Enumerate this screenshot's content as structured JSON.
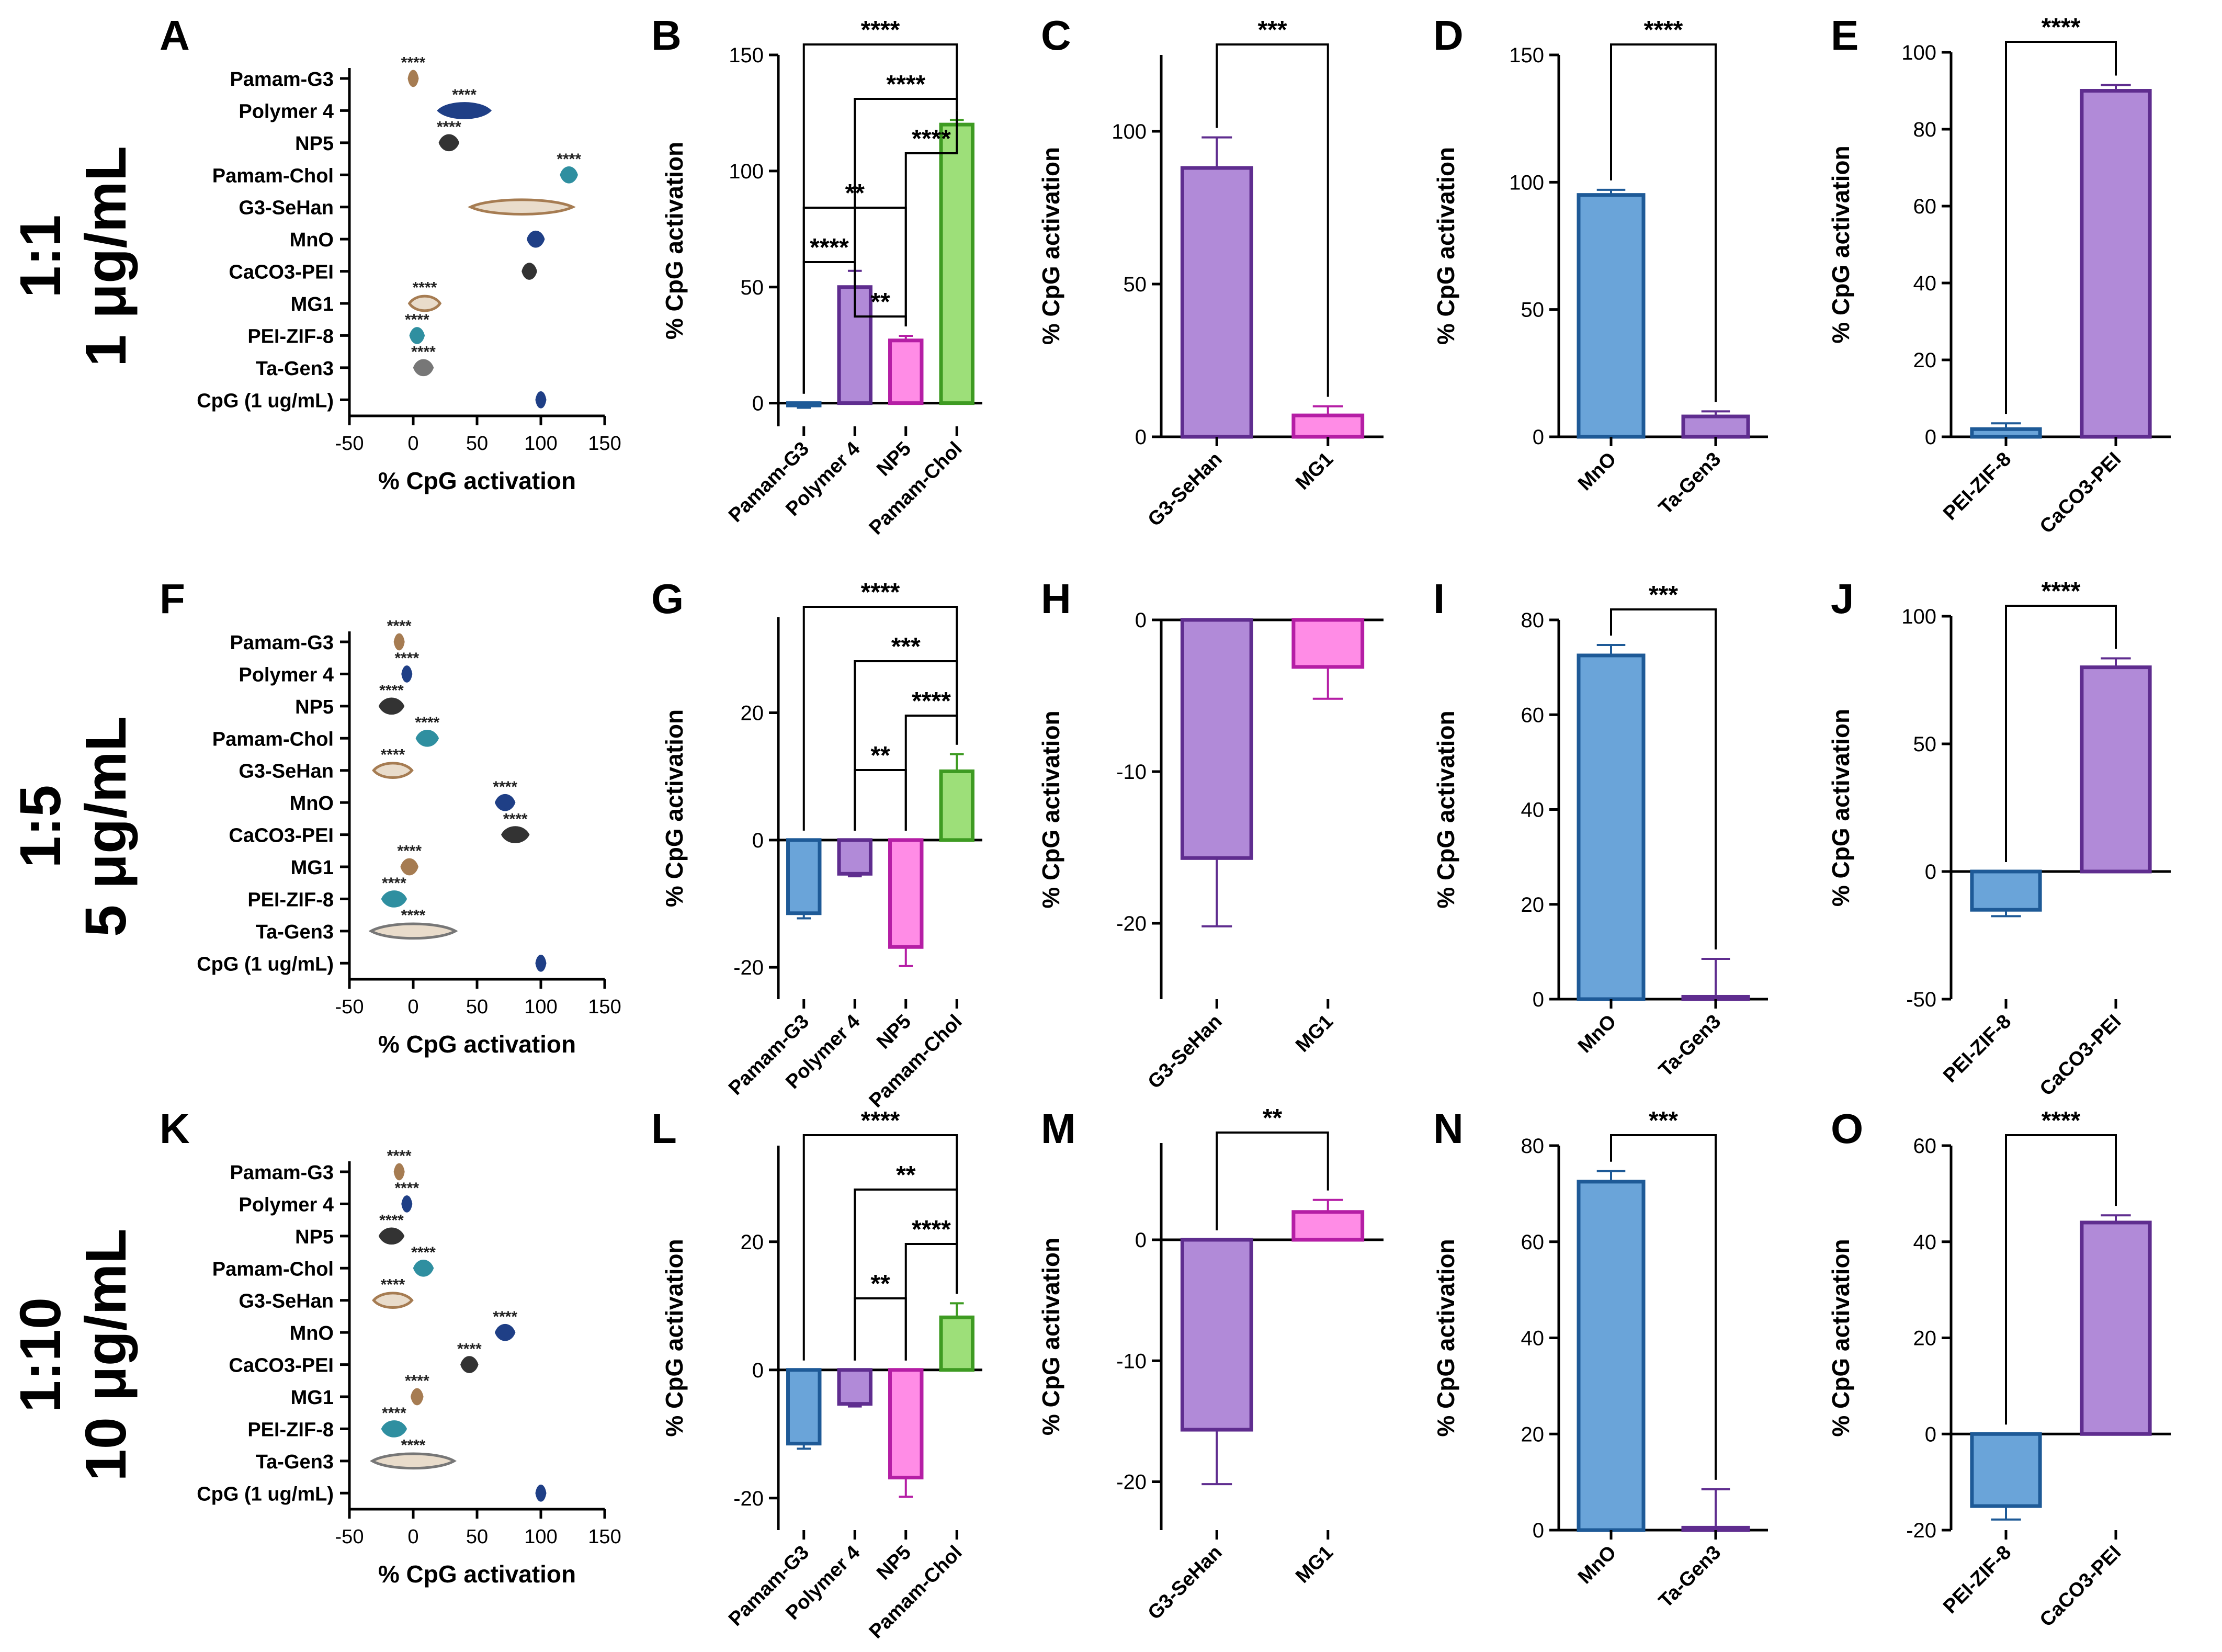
{
  "row_labels": [
    {
      "ratio": "1:1",
      "conc": "1 μg/mL"
    },
    {
      "ratio": "1:5",
      "conc": "5 μg/mL"
    },
    {
      "ratio": "1:10",
      "conc": "10 μg/mL"
    }
  ],
  "colors": {
    "brown": "#a67c52",
    "navy": "#1f3f86",
    "dark": "#333333",
    "teal": "#2f8fa0",
    "gray": "#777777",
    "blue_fill": "#6aa4d9",
    "blue_edge": "#1e5a97",
    "purple_fill": "#b18ad8",
    "purple_edge": "#5f2d8f",
    "pink_fill": "#ff8ce6",
    "pink_edge": "#b51ea5",
    "green_fill": "#9ddf79",
    "green_edge": "#3e9b22"
  },
  "chart_data": [
    {
      "panel": "A",
      "type": "violin",
      "xlabel": "% CpG activation",
      "xlim": [
        -50,
        150
      ],
      "xticks": [
        -50,
        0,
        50,
        100,
        150
      ],
      "categories": [
        "Pamam-G3",
        "Polymer 4",
        "NP5",
        "Pamam-Chol",
        "G3-SeHan",
        "MnO",
        "CaCO3-PEI",
        "MG1",
        "PEI-ZIF-8",
        "Ta-Gen3",
        "CpG (1 ug/mL)"
      ],
      "values": [
        0,
        40,
        28,
        122,
        85,
        96,
        91,
        9,
        3,
        8,
        100
      ],
      "spread": [
        3,
        20,
        7,
        6,
        40,
        6,
        5,
        12,
        5,
        7,
        3
      ],
      "colors": [
        "brown",
        "navy",
        "dark",
        "teal",
        "brown",
        "navy",
        "dark",
        "brown",
        "teal",
        "gray",
        "navy"
      ],
      "significance": [
        "****",
        "****",
        "****",
        "****",
        "",
        "",
        "",
        "****",
        "****",
        "****",
        ""
      ]
    },
    {
      "panel": "B",
      "type": "bar",
      "ylabel": "% CpG activation",
      "ylim": [
        -10,
        150
      ],
      "yticks": [
        0,
        50,
        100,
        150
      ],
      "categories": [
        "Pamam-G3",
        "Polymer 4",
        "NP5",
        "Pamam-Chol"
      ],
      "values": [
        -1,
        50,
        27,
        120
      ],
      "errors": [
        1,
        7,
        2,
        2
      ],
      "colors": [
        "blue",
        "purple",
        "pink",
        "green"
      ],
      "brackets": [
        {
          "from": 0,
          "to": 3,
          "label": "****"
        },
        {
          "from": 1,
          "to": 3,
          "label": "****"
        },
        {
          "from": 2,
          "to": 3,
          "label": "****"
        },
        {
          "from": 0,
          "to": 2,
          "label": "**"
        },
        {
          "from": 0,
          "to": 1,
          "label": "****"
        },
        {
          "from": 1,
          "to": 2,
          "label": "**"
        }
      ]
    },
    {
      "panel": "C",
      "type": "bar",
      "ylabel": "% CpG activation",
      "ylim": [
        0,
        125
      ],
      "yticks": [
        0,
        50,
        100
      ],
      "categories": [
        "G3-SeHan",
        "MG1"
      ],
      "values": [
        88,
        7
      ],
      "errors": [
        10,
        3
      ],
      "colors": [
        "purple",
        "pink"
      ],
      "brackets": [
        {
          "from": 0,
          "to": 1,
          "label": "***"
        }
      ]
    },
    {
      "panel": "D",
      "type": "bar",
      "ylabel": "% CpG activation",
      "ylim": [
        0,
        150
      ],
      "yticks": [
        0,
        50,
        100,
        150
      ],
      "categories": [
        "MnO",
        "Ta-Gen3"
      ],
      "values": [
        95,
        8
      ],
      "errors": [
        2,
        2
      ],
      "colors": [
        "blue",
        "purple"
      ],
      "brackets": [
        {
          "from": 0,
          "to": 1,
          "label": "****"
        }
      ]
    },
    {
      "panel": "E",
      "type": "bar",
      "ylabel": "% CpG activation",
      "ylim": [
        0,
        100
      ],
      "yticks": [
        0,
        20,
        40,
        60,
        80,
        100
      ],
      "categories": [
        "PEI-ZIF-8",
        "CaCO3-PEI"
      ],
      "values": [
        2,
        90
      ],
      "errors": [
        1.5,
        1.5
      ],
      "colors": [
        "blue",
        "purple"
      ],
      "brackets": [
        {
          "from": 0,
          "to": 1,
          "label": "****"
        }
      ]
    },
    {
      "panel": "F",
      "type": "violin",
      "xlabel": "% CpG activation",
      "xlim": [
        -50,
        150
      ],
      "xticks": [
        -50,
        0,
        50,
        100,
        150
      ],
      "categories": [
        "Pamam-G3",
        "Polymer 4",
        "NP5",
        "Pamam-Chol",
        "G3-SeHan",
        "MnO",
        "CaCO3-PEI",
        "MG1",
        "PEI-ZIF-8",
        "Ta-Gen3",
        "CpG (1 ug/mL)"
      ],
      "values": [
        -11,
        -5,
        -17,
        11,
        -16,
        72,
        80,
        -3,
        -15,
        0,
        100
      ],
      "spread": [
        3,
        2,
        9,
        8,
        15,
        7,
        10,
        6,
        9,
        33,
        3
      ],
      "colors": [
        "brown",
        "navy",
        "dark",
        "teal",
        "brown",
        "navy",
        "dark",
        "brown",
        "teal",
        "gray",
        "navy"
      ],
      "significance": [
        "****",
        "****",
        "****",
        "****",
        "****",
        "****",
        "****",
        "****",
        "****",
        "****",
        ""
      ]
    },
    {
      "panel": "G",
      "type": "bar",
      "ylabel": "% CpG activation",
      "ylim": [
        -25,
        35
      ],
      "yticks": [
        -20,
        0,
        20
      ],
      "categories": [
        "Pamam-G3",
        "Polymer 4",
        "NP5",
        "Pamam-Chol"
      ],
      "values": [
        -11.5,
        -5.3,
        -16.8,
        10.8
      ],
      "errors": [
        0.8,
        0.4,
        3.0,
        2.7
      ],
      "colors": [
        "blue",
        "purple",
        "pink",
        "green"
      ],
      "brackets": [
        {
          "from": 0,
          "to": 3,
          "label": "****"
        },
        {
          "from": 1,
          "to": 3,
          "label": "***"
        },
        {
          "from": 2,
          "to": 3,
          "label": "****"
        },
        {
          "from": 1,
          "to": 2,
          "label": "**"
        }
      ]
    },
    {
      "panel": "H",
      "type": "bar",
      "ylabel": "% CpG activation",
      "ylim": [
        -25,
        0
      ],
      "yticks": [
        -20,
        -10,
        0
      ],
      "categories": [
        "G3-SeHan",
        "MG1"
      ],
      "values": [
        -15.7,
        -3.1
      ],
      "errors": [
        4.5,
        2.1
      ],
      "colors": [
        "purple",
        "pink"
      ],
      "brackets": []
    },
    {
      "panel": "I",
      "type": "bar",
      "ylabel": "% CpG activation",
      "ylim": [
        0,
        80
      ],
      "yticks": [
        0,
        20,
        40,
        60,
        80
      ],
      "categories": [
        "MnO",
        "Ta-Gen3"
      ],
      "values": [
        72.5,
        0.5
      ],
      "errors": [
        2.2,
        8.0
      ],
      "colors": [
        "blue",
        "purple"
      ],
      "brackets": [
        {
          "from": 0,
          "to": 1,
          "label": "***"
        }
      ]
    },
    {
      "panel": "J",
      "type": "bar",
      "ylabel": "% CpG activation",
      "ylim": [
        -50,
        100
      ],
      "yticks": [
        -50,
        0,
        50,
        100
      ],
      "categories": [
        "PEI-ZIF-8",
        "CaCO3-PEI"
      ],
      "values": [
        -15,
        80
      ],
      "errors": [
        2.5,
        3.5
      ],
      "colors": [
        "blue",
        "purple"
      ],
      "brackets": [
        {
          "from": 0,
          "to": 1,
          "label": "****"
        }
      ]
    },
    {
      "panel": "K",
      "type": "violin",
      "xlabel": "% CpG activation",
      "xlim": [
        -50,
        150
      ],
      "xticks": [
        -50,
        0,
        50,
        100,
        150
      ],
      "categories": [
        "Pamam-G3",
        "Polymer 4",
        "NP5",
        "Pamam-Chol",
        "G3-SeHan",
        "MnO",
        "CaCO3-PEI",
        "MG1",
        "PEI-ZIF-8",
        "Ta-Gen3",
        "CpG (1 ug/mL)"
      ],
      "values": [
        -11,
        -5,
        -17,
        8,
        -16,
        72,
        44,
        3,
        -15,
        0,
        100
      ],
      "spread": [
        3,
        2,
        9,
        7,
        15,
        7,
        6,
        4,
        9,
        32,
        3
      ],
      "colors": [
        "brown",
        "navy",
        "dark",
        "teal",
        "brown",
        "navy",
        "dark",
        "brown",
        "teal",
        "gray",
        "navy"
      ],
      "significance": [
        "****",
        "****",
        "****",
        "****",
        "****",
        "****",
        "****",
        "****",
        "****",
        "****",
        ""
      ]
    },
    {
      "panel": "L",
      "type": "bar",
      "ylabel": "% CpG activation",
      "ylim": [
        -25,
        35
      ],
      "yticks": [
        -20,
        0,
        20
      ],
      "categories": [
        "Pamam-G3",
        "Polymer 4",
        "NP5",
        "Pamam-Chol"
      ],
      "values": [
        -11.5,
        -5.3,
        -16.8,
        8.2
      ],
      "errors": [
        0.8,
        0.4,
        3.0,
        2.2
      ],
      "colors": [
        "blue",
        "purple",
        "pink",
        "green"
      ],
      "brackets": [
        {
          "from": 0,
          "to": 3,
          "label": "****"
        },
        {
          "from": 1,
          "to": 3,
          "label": "**"
        },
        {
          "from": 2,
          "to": 3,
          "label": "****"
        },
        {
          "from": 1,
          "to": 2,
          "label": "**"
        }
      ]
    },
    {
      "panel": "M",
      "type": "bar",
      "ylabel": "% CpG activation",
      "ylim": [
        -24,
        8
      ],
      "yticks": [
        -20,
        -10,
        0
      ],
      "categories": [
        "G3-SeHan",
        "MG1"
      ],
      "values": [
        -15.7,
        2.3
      ],
      "errors": [
        4.5,
        1.0
      ],
      "colors": [
        "purple",
        "pink"
      ],
      "brackets": [
        {
          "from": 0,
          "to": 1,
          "label": "**"
        }
      ]
    },
    {
      "panel": "N",
      "type": "bar",
      "ylabel": "% CpG activation",
      "ylim": [
        0,
        80
      ],
      "yticks": [
        0,
        20,
        40,
        60,
        80
      ],
      "categories": [
        "MnO",
        "Ta-Gen3"
      ],
      "values": [
        72.5,
        0.5
      ],
      "errors": [
        2.2,
        8.0
      ],
      "colors": [
        "blue",
        "purple"
      ],
      "brackets": [
        {
          "from": 0,
          "to": 1,
          "label": "***"
        }
      ]
    },
    {
      "panel": "O",
      "type": "bar",
      "ylabel": "% CpG activation",
      "ylim": [
        -20,
        60
      ],
      "yticks": [
        -20,
        0,
        20,
        40,
        60
      ],
      "categories": [
        "PEI-ZIF-8",
        "CaCO3-PEI"
      ],
      "values": [
        -15,
        44
      ],
      "errors": [
        2.8,
        1.5
      ],
      "colors": [
        "blue",
        "purple"
      ],
      "brackets": [
        {
          "from": 0,
          "to": 1,
          "label": "****"
        }
      ]
    }
  ]
}
